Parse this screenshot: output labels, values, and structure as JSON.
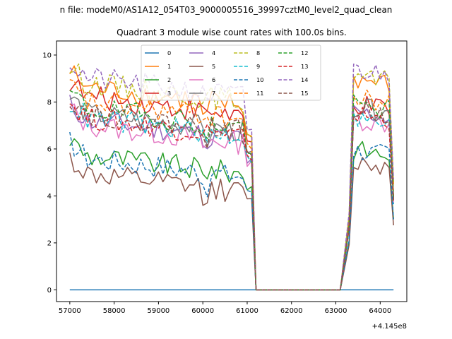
{
  "chart_data": {
    "type": "line",
    "suptitle": "n file: modeM0/AS1A12_054T03_9000005516_39997cztM0_level2_quad_clean",
    "title": "Quadrant 3 module wise count rates with 100.0s bins.",
    "xlabel": "",
    "ylabel": "",
    "x_offset_label": "+4.145e8",
    "xlim": [
      56700,
      64600
    ],
    "ylim": [
      -0.5,
      10.6
    ],
    "xticks": [
      57000,
      58000,
      59000,
      60000,
      61000,
      62000,
      63000,
      64000
    ],
    "xtick_labels": [
      "57000",
      "58000",
      "59000",
      "60000",
      "61000",
      "62000",
      "63000",
      "64000"
    ],
    "yticks": [
      0,
      2,
      4,
      6,
      8,
      10
    ],
    "ytick_labels": [
      "0",
      "2",
      "4",
      "6",
      "8",
      "10"
    ],
    "grid": false,
    "legend_position": "upper-center",
    "segments_note": "active data approx x 57000-61100 and 63300-64300, near-zero gap approx 61200-63100",
    "series": [
      {
        "name": "0",
        "color": "#1f77b4",
        "dash": false,
        "base": 0.0,
        "base2": 0.0,
        "zero": true
      },
      {
        "name": "1",
        "color": "#ff7f0e",
        "dash": false,
        "base": 8.7,
        "base2": 9.0
      },
      {
        "name": "2",
        "color": "#2ca02c",
        "dash": false,
        "base": 5.8,
        "base2": 6.0
      },
      {
        "name": "3",
        "color": "#d62728",
        "dash": false,
        "base": 8.3,
        "base2": 7.9
      },
      {
        "name": "4",
        "color": "#9467bd",
        "dash": false,
        "base": 7.3,
        "base2": 7.6
      },
      {
        "name": "5",
        "color": "#8c564b",
        "dash": false,
        "base": 5.0,
        "base2": 5.5
      },
      {
        "name": "6",
        "color": "#e377c2",
        "dash": false,
        "base": 7.1,
        "base2": 7.3
      },
      {
        "name": "7",
        "color": "#7f7f7f",
        "dash": false,
        "base": 7.6,
        "base2": 7.8
      },
      {
        "name": "8",
        "color": "#bcbd22",
        "dash": true,
        "base": 8.9,
        "base2": 9.1
      },
      {
        "name": "9",
        "color": "#17becf",
        "dash": true,
        "base": 7.4,
        "base2": 7.3
      },
      {
        "name": "10",
        "color": "#1f77b4",
        "dash": true,
        "base": 5.7,
        "base2": 6.0
      },
      {
        "name": "11",
        "color": "#ff7f0e",
        "dash": true,
        "base": 8.1,
        "base2": 8.2
      },
      {
        "name": "12",
        "color": "#2ca02c",
        "dash": true,
        "base": 7.8,
        "base2": 7.9
      },
      {
        "name": "13",
        "color": "#d62728",
        "dash": true,
        "base": 7.4,
        "base2": 7.5
      },
      {
        "name": "14",
        "color": "#9467bd",
        "dash": true,
        "base": 9.1,
        "base2": 9.4
      },
      {
        "name": "15",
        "color": "#8c564b",
        "dash": true,
        "base": 7.6,
        "base2": 7.7
      }
    ]
  }
}
